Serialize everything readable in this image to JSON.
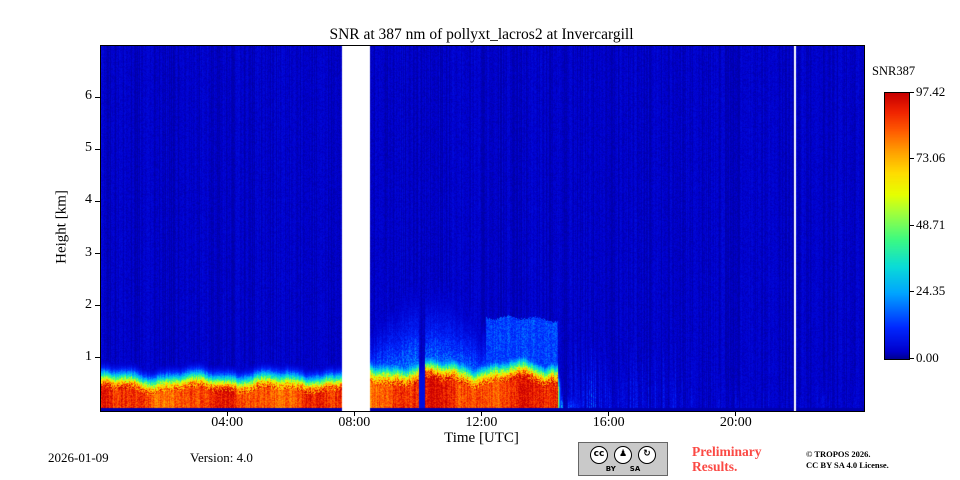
{
  "chart_data": {
    "type": "heatmap",
    "title": "SNR at 387 nm of pollyxt_lacros2 at Invercargill",
    "xlabel": "Time [UTC]",
    "ylabel": "Height [km]",
    "x_tick_labels": [
      "04:00",
      "08:00",
      "12:00",
      "16:00",
      "20:00"
    ],
    "x_tick_hours": [
      4,
      8,
      12,
      16,
      20
    ],
    "x_range_hours": [
      0,
      24
    ],
    "y_tick_km": [
      1,
      2,
      3,
      4,
      5,
      6
    ],
    "y_range_km": [
      0,
      7
    ],
    "grid": false,
    "legend_position": "right-colorbar",
    "colorbar": {
      "label": "SNR387",
      "tick_labels": [
        "97.42",
        "73.06",
        "48.71",
        "24.35",
        "0.00"
      ],
      "tick_values": [
        97.42,
        73.06,
        48.71,
        24.35,
        0.0
      ],
      "min": 0.0,
      "max": 97.42
    },
    "colormap": "jet",
    "colormap_stops": [
      {
        "v": 0.0,
        "rgb": [
          0,
          0,
          140
        ]
      },
      {
        "v": 0.03,
        "rgb": [
          0,
          0,
          205
        ]
      },
      {
        "v": 0.12,
        "rgb": [
          0,
          40,
          255
        ]
      },
      {
        "v": 0.25,
        "rgb": [
          0,
          165,
          255
        ]
      },
      {
        "v": 0.35,
        "rgb": [
          10,
          220,
          215
        ]
      },
      {
        "v": 0.45,
        "rgb": [
          60,
          250,
          130
        ]
      },
      {
        "v": 0.55,
        "rgb": [
          160,
          255,
          60
        ]
      },
      {
        "v": 0.62,
        "rgb": [
          230,
          255,
          0
        ]
      },
      {
        "v": 0.7,
        "rgb": [
          255,
          220,
          0
        ]
      },
      {
        "v": 0.78,
        "rgb": [
          255,
          160,
          0
        ]
      },
      {
        "v": 0.86,
        "rgb": [
          255,
          90,
          0
        ]
      },
      {
        "v": 0.93,
        "rgb": [
          240,
          35,
          0
        ]
      },
      {
        "v": 1.0,
        "rgb": [
          200,
          0,
          0
        ]
      }
    ],
    "data_gaps_hours": [
      [
        7.55,
        8.45
      ],
      [
        21.78,
        21.86
      ]
    ],
    "features": {
      "background_snr": 2.0,
      "boundary_layer_segments": [
        {
          "t0": 0.0,
          "t1": 7.55,
          "amp": 95,
          "top_km": 0.4,
          "edge_km": 0.26
        },
        {
          "t0": 8.45,
          "t1": 14.35,
          "amp": 97,
          "top_km": 0.55,
          "edge_km": 0.3
        }
      ],
      "elevated_diffuse": {
        "t0": 8.45,
        "t1": 12.1,
        "amp": 30,
        "scale_km_base": 0.9,
        "scale_km_bulge": 0.55
      },
      "elevated_capped": {
        "t0": 12.1,
        "t1": 14.35,
        "amp": 15,
        "top_km": 1.8
      },
      "dip_columns_hours": [
        [
          10.0,
          10.18
        ],
        [
          14.52,
          14.68
        ]
      ],
      "residual_bottom": {
        "t0": 14.35,
        "t1": 15.25,
        "amp": 40,
        "scale_km": 0.25
      },
      "noise_streak_segments": [
        {
          "t0": 0.0,
          "t1": 7.55,
          "prob": 0.28,
          "amp": 4,
          "height_km": 2.2
        },
        {
          "t0": 8.45,
          "t1": 12.0,
          "prob": 0.3,
          "amp": 6,
          "height_km": 4.5
        },
        {
          "t0": 14.45,
          "t1": 15.6,
          "prob": 0.75,
          "amp": 15,
          "height_km": 2.2
        },
        {
          "t0": 15.6,
          "t1": 18.6,
          "prob": 0.55,
          "amp": 9,
          "height_km": 1.6
        },
        {
          "t0": 18.6,
          "t1": 24.0,
          "prob": 0.45,
          "amp": 6,
          "height_km": 0.9
        }
      ]
    }
  },
  "footer": {
    "date": "2026-01-09",
    "version": "Version: 4.0",
    "preliminary_line1": "Preliminary",
    "preliminary_line2": "Results.",
    "copyright_line1": "© TROPOS 2026.",
    "copyright_line2": "CC BY SA 4.0 License.",
    "cc_badge": {
      "cc": "cc",
      "by_glyph": "♟",
      "sa_glyph": "↻",
      "by": "BY",
      "sa": "SA"
    }
  }
}
